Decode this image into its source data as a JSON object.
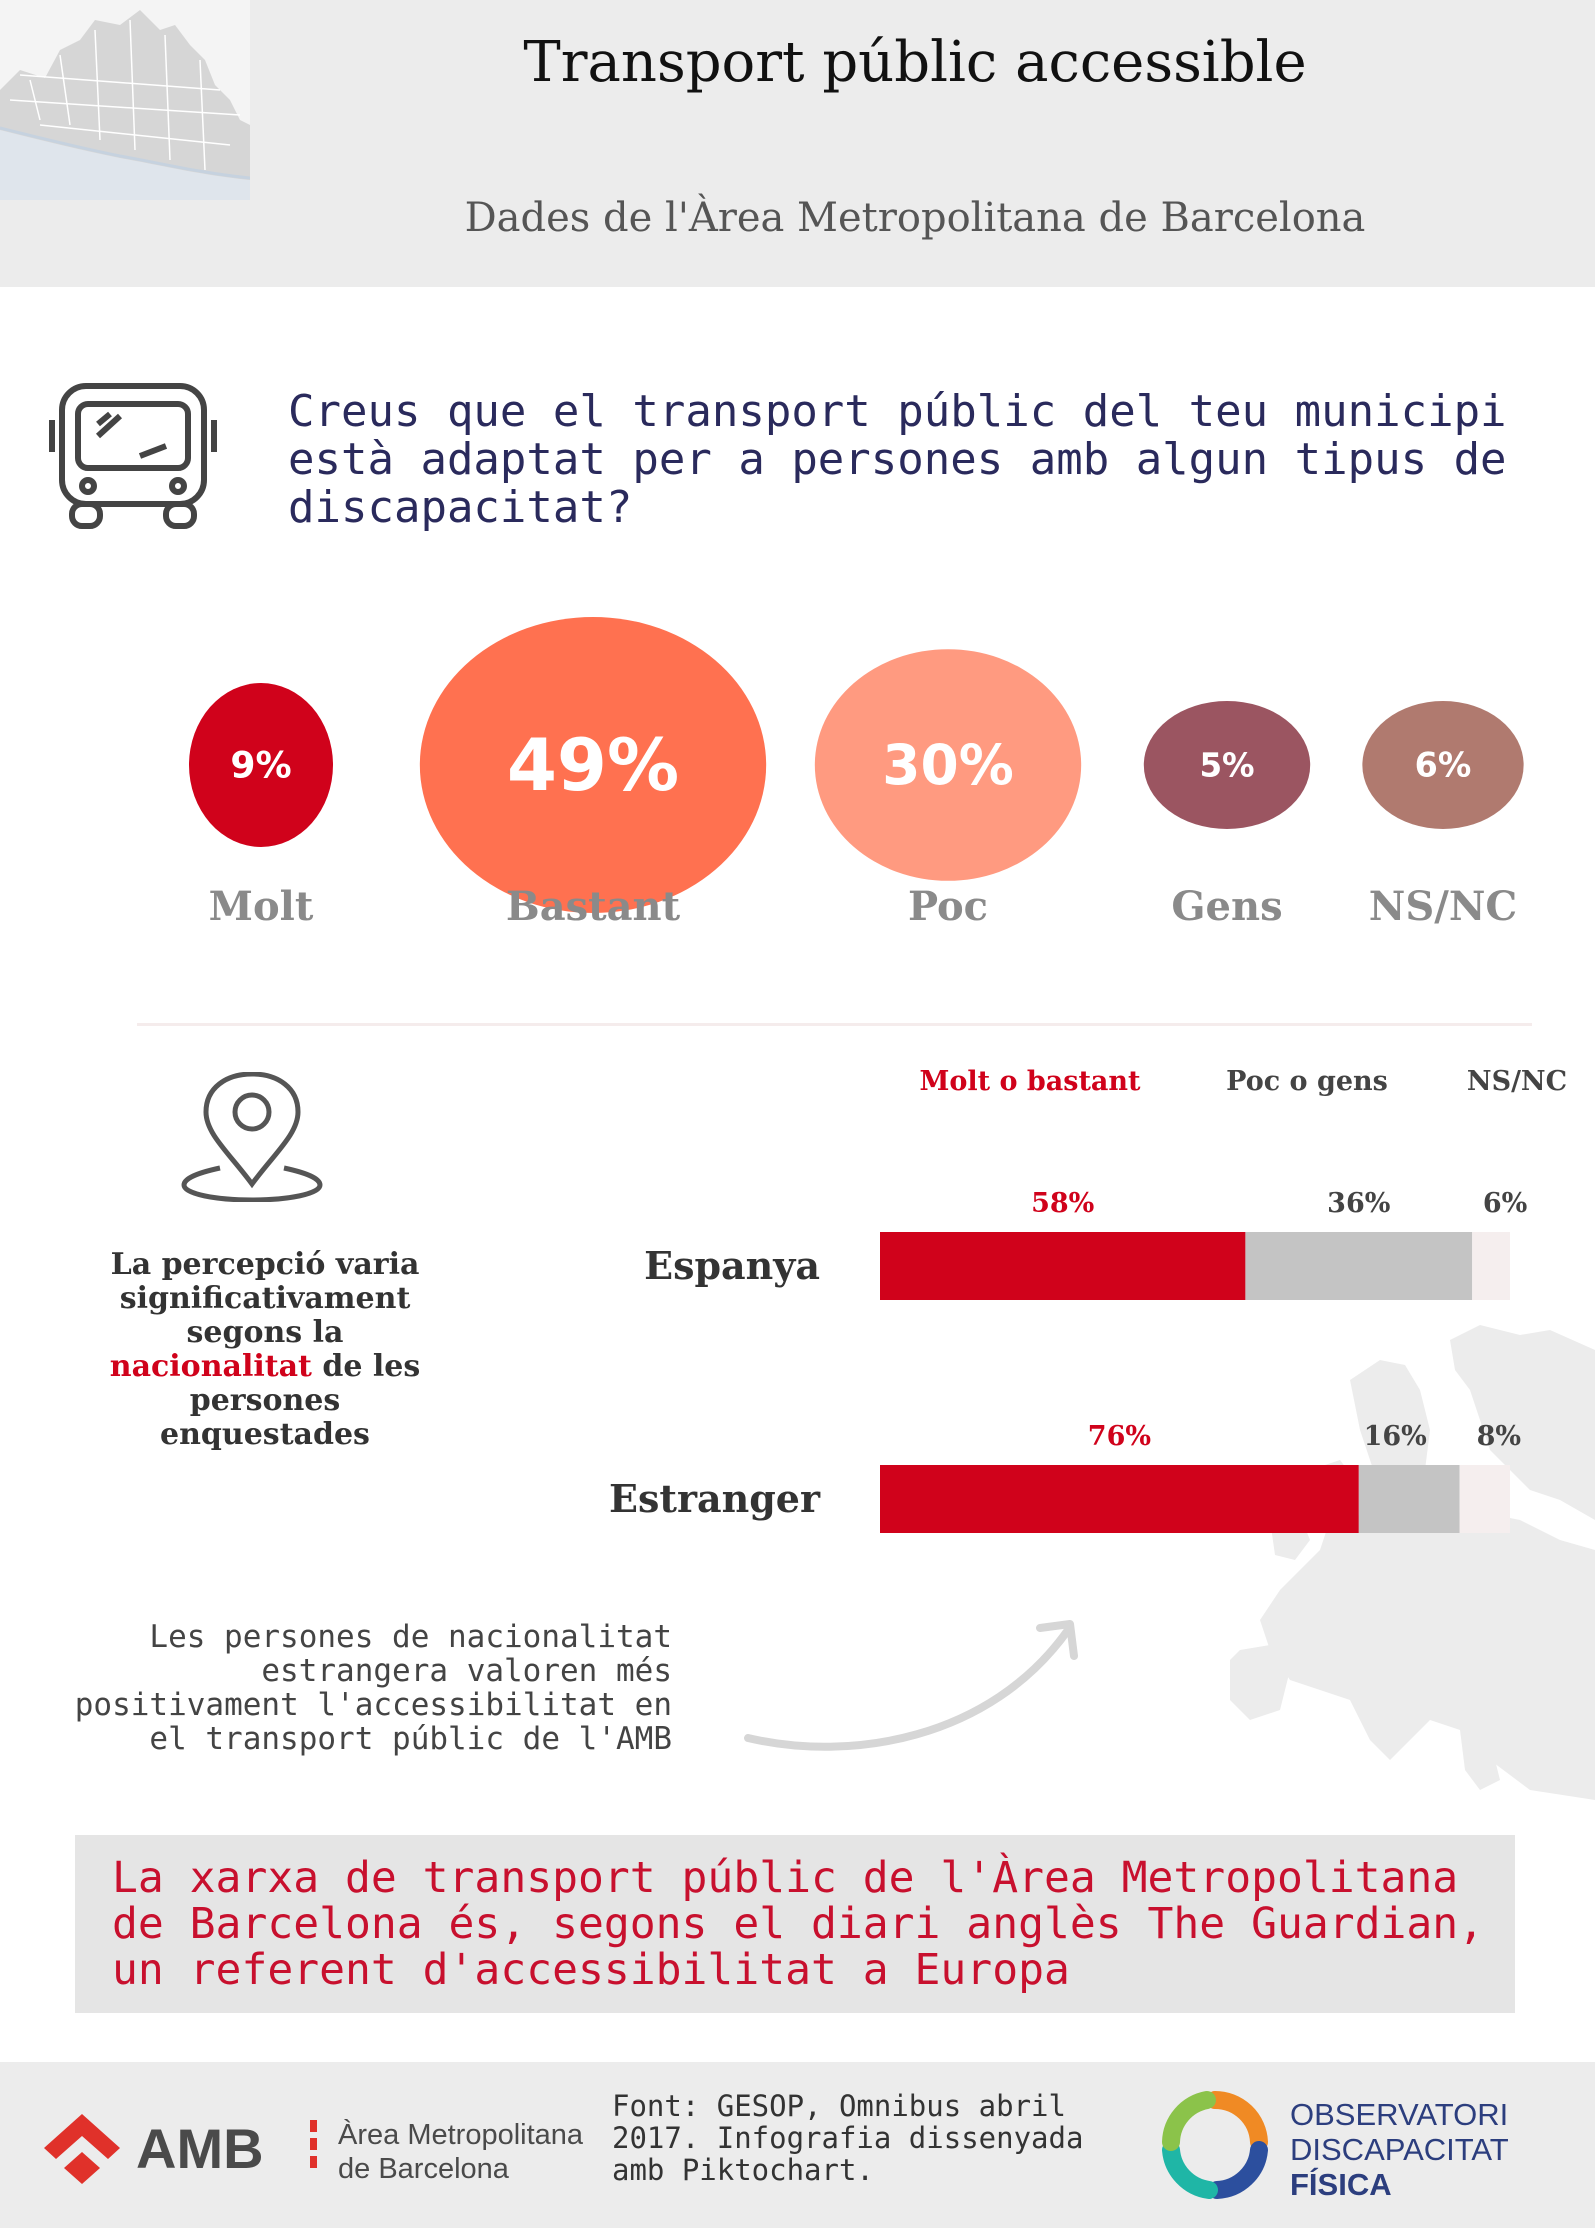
{
  "header": {
    "title": "Transport públic accessible",
    "subtitle": "Dades de l'Àrea Metropolitana de Barcelona"
  },
  "question": "Creus que el transport públic del teu municipi està adaptat per a persones amb algun tipus de discapacitat?",
  "side_note": {
    "before": "La percepció varia significativament segons la",
    "highlight": "nacionalitat",
    "after": "de les persones enquestades"
  },
  "comment": "Les persones de nacionalitat estrangera valoren més positivament l'accessibilitat en el transport públic de l'AMB",
  "banner": "La xarxa de transport públic de l'Àrea  Metropolitana de Barcelona és, segons el diari anglès The Guardian, un referent d'accessibilitat a Europa",
  "footer": {
    "amb_name": "AMB",
    "amb_line1": "Àrea Metropolitana",
    "amb_line2": "de Barcelona",
    "source": "Font: GESOP, Omnibus abril 2017. Infografia dissenyada amb Piktochart.",
    "obs_line1": "OBSERVATORI",
    "obs_line2": "DISCAPACITAT",
    "obs_line3": "FÍSICA"
  },
  "icons": [
    "map-thumbnail",
    "bus-icon",
    "location-pin-icon",
    "europe-map",
    "curved-arrow-icon",
    "amb-logo-icon",
    "observatori-logo-icon"
  ],
  "chart_data": [
    {
      "type": "bubble",
      "categories": [
        "Molt",
        "Bastant",
        "Poc",
        "Gens",
        "NS/NC"
      ],
      "values": [
        9,
        49,
        30,
        5,
        6
      ],
      "value_labels": [
        "9%",
        "49%",
        "30%",
        "5%",
        "6%"
      ],
      "colors": [
        "#d0021b",
        "#ff7150",
        "#ff9a80",
        "#9b5561",
        "#b07a6f"
      ]
    },
    {
      "type": "bar",
      "stacked": true,
      "orientation": "horizontal",
      "categories": [
        "Espanya",
        "Estranger"
      ],
      "legend": [
        "Molt o bastant",
        "Poc o gens",
        "NS/NC"
      ],
      "legend_placement": "top",
      "colors": [
        "#d0021b",
        "#c4c4c4",
        "#f5eeee"
      ],
      "series": [
        {
          "name": "Molt o bastant",
          "values": [
            58,
            76
          ],
          "labels": [
            "58%",
            "76%"
          ]
        },
        {
          "name": "Poc o gens",
          "values": [
            36,
            16
          ],
          "labels": [
            "36%",
            "16%"
          ]
        },
        {
          "name": "NS/NC",
          "values": [
            6,
            8
          ],
          "labels": [
            "6%",
            "8%"
          ]
        }
      ],
      "xlim": [
        0,
        100
      ]
    }
  ]
}
